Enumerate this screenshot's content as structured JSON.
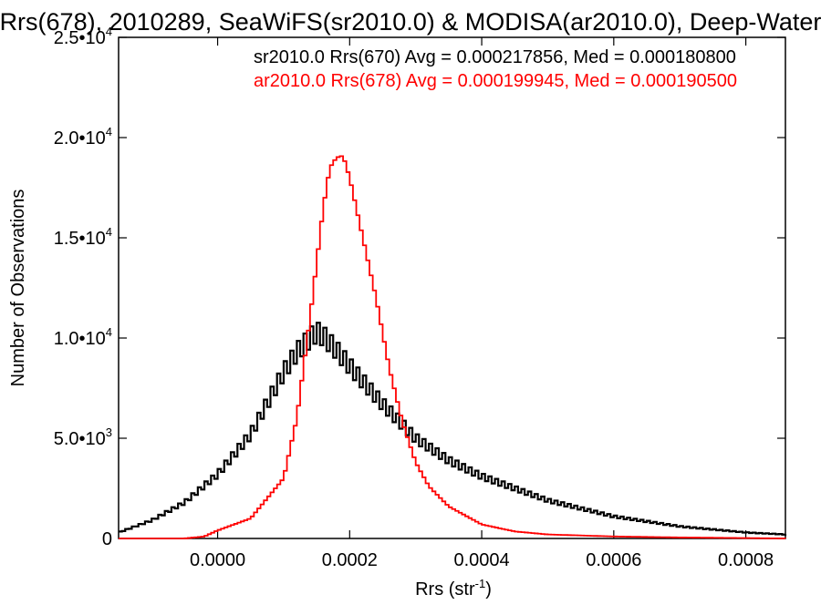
{
  "chart_data": {
    "type": "line",
    "title": "Rrs(678), 2010289, SeaWiFS(sr2010.0) & MODISA(ar2010.0), Deep-Water",
    "xlabel": "Rrs (str",
    "xlabel_exp": "-1",
    "xlabel_close": ")",
    "ylabel": "Number of Observations",
    "xlim": [
      -0.00015,
      0.00086
    ],
    "ylim": [
      0,
      25000
    ],
    "grid": false,
    "x_ticks": [
      {
        "value": 0.0,
        "label": "0.0000"
      },
      {
        "value": 0.0002,
        "label": "0.0002"
      },
      {
        "value": 0.0004,
        "label": "0.0004"
      },
      {
        "value": 0.0006,
        "label": "0.0006"
      },
      {
        "value": 0.0008,
        "label": "0.0008"
      }
    ],
    "y_ticks": [
      {
        "value": 0,
        "mantissa": "0",
        "exp": ""
      },
      {
        "value": 5000,
        "mantissa": "5.0•10",
        "exp": "3"
      },
      {
        "value": 10000,
        "mantissa": "1.0•10",
        "exp": "4"
      },
      {
        "value": 15000,
        "mantissa": "1.5•10",
        "exp": "4"
      },
      {
        "value": 20000,
        "mantissa": "2.0•10",
        "exp": "4"
      },
      {
        "value": 25000,
        "mantissa": "2.5•10",
        "exp": "4"
      }
    ],
    "legend_position": "top-right",
    "series": [
      {
        "name": "sr2010.0 Rrs(670) Avg = 0.000217856, Med = 0.000180800",
        "color": "#000000",
        "x": [
          -0.00015,
          -0.0001,
          -5e-05,
          0.0,
          5e-05,
          0.0001,
          0.00012,
          0.00014,
          0.00015,
          0.00016,
          0.00018,
          0.0002,
          0.00025,
          0.0003,
          0.00035,
          0.0004,
          0.0005,
          0.0006,
          0.0007,
          0.0008,
          0.00086
        ],
        "y": [
          300,
          900,
          1800,
          3200,
          5200,
          8300,
          9300,
          10000,
          10300,
          10100,
          9400,
          8600,
          6700,
          5000,
          3900,
          3100,
          1900,
          1100,
          600,
          300,
          200
        ],
        "alternating": true
      },
      {
        "name": "ar2010.0 Rrs(678) Avg = 0.000199945, Med = 0.000190500",
        "color": "#ff0000",
        "x": [
          -0.00015,
          -0.0001,
          -5e-05,
          -2e-05,
          0.0,
          5e-05,
          0.0001,
          0.00012,
          0.00014,
          0.00016,
          0.00017,
          0.00018,
          0.00019,
          0.0002,
          0.00021,
          0.00022,
          0.00024,
          0.00026,
          0.00028,
          0.0003,
          0.00032,
          0.00035,
          0.0004,
          0.00045,
          0.0005,
          0.0006,
          0.0007,
          0.0008,
          0.00086
        ],
        "y": [
          0,
          0,
          0,
          100,
          400,
          1000,
          3000,
          6000,
          11000,
          16500,
          18500,
          19000,
          19100,
          18000,
          16500,
          15000,
          12000,
          8500,
          5800,
          3800,
          2600,
          1600,
          700,
          350,
          200,
          100,
          50,
          20,
          0
        ],
        "alternating": false
      }
    ]
  }
}
